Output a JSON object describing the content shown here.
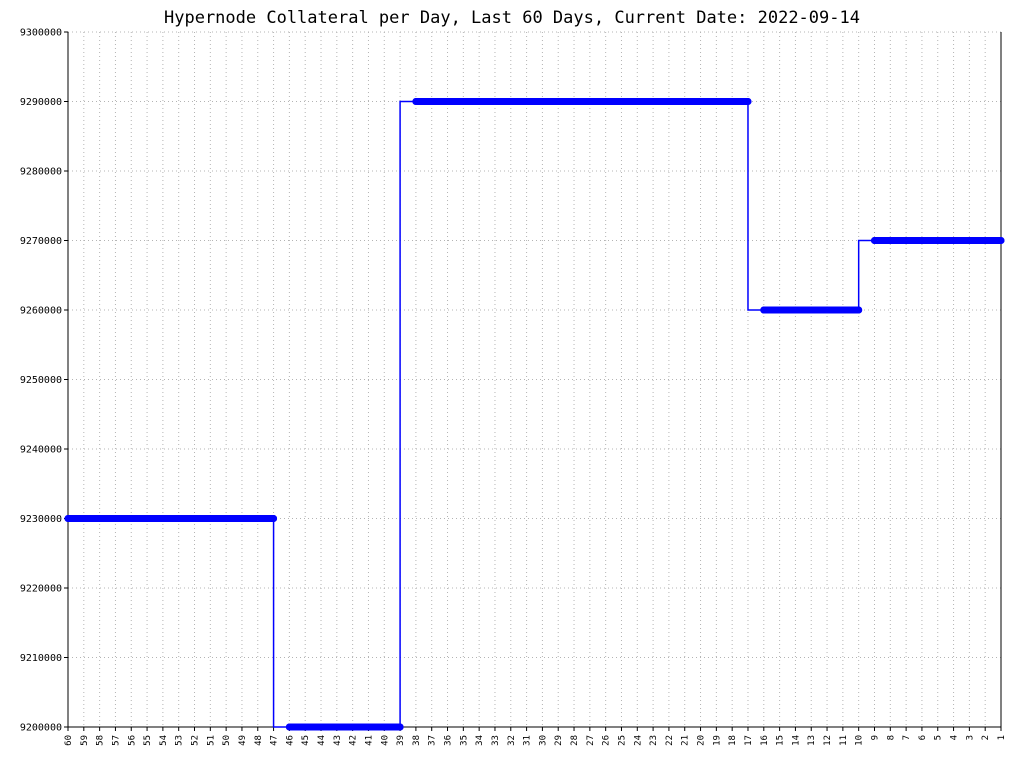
{
  "chart_data": {
    "type": "line",
    "title": "Hypernode Collateral per Day, Last 60 Days, Current Date: 2022-09-14",
    "xlabel": "",
    "ylabel": "",
    "categories": [
      "60",
      "59",
      "58",
      "57",
      "56",
      "55",
      "54",
      "53",
      "52",
      "51",
      "50",
      "49",
      "48",
      "47",
      "46",
      "45",
      "44",
      "43",
      "42",
      "41",
      "40",
      "39",
      "38",
      "37",
      "36",
      "35",
      "34",
      "33",
      "32",
      "31",
      "30",
      "29",
      "28",
      "27",
      "26",
      "25",
      "24",
      "23",
      "22",
      "21",
      "20",
      "19",
      "18",
      "17",
      "16",
      "15",
      "14",
      "13",
      "12",
      "11",
      "10",
      "9",
      "8",
      "7",
      "6",
      "5",
      "4",
      "3",
      "2",
      "1"
    ],
    "ylim": [
      9200000,
      9300000
    ],
    "yticks": [
      9200000,
      9210000,
      9220000,
      9230000,
      9240000,
      9250000,
      9260000,
      9270000,
      9280000,
      9290000,
      9300000
    ],
    "grid": true,
    "series": [
      {
        "color": "#0000ff",
        "values": [
          9230000,
          9230000,
          9230000,
          9230000,
          9230000,
          9230000,
          9230000,
          9230000,
          9230000,
          9230000,
          9230000,
          9230000,
          9230000,
          9230000,
          9200000,
          9200000,
          9200000,
          9200000,
          9200000,
          9200000,
          9200000,
          9200000,
          9290000,
          9290000,
          9290000,
          9290000,
          9290000,
          9290000,
          9290000,
          9290000,
          9290000,
          9290000,
          9290000,
          9290000,
          9290000,
          9290000,
          9290000,
          9290000,
          9290000,
          9290000,
          9290000,
          9290000,
          9290000,
          9290000,
          9260000,
          9260000,
          9260000,
          9260000,
          9260000,
          9260000,
          9260000,
          9270000,
          9270000,
          9270000,
          9270000,
          9270000,
          9270000,
          9270000,
          9270000,
          9270000
        ]
      }
    ]
  }
}
